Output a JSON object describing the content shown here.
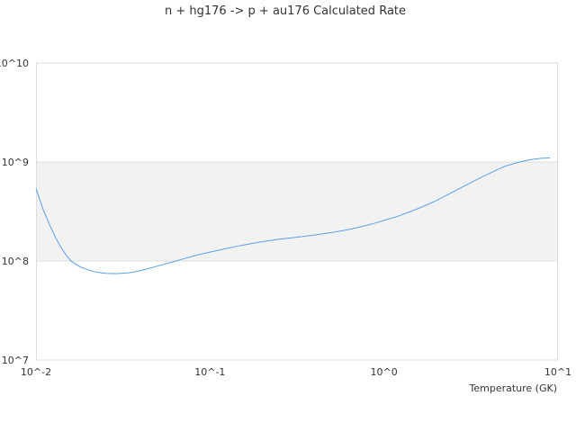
{
  "chart_data": {
    "type": "line",
    "title": "n + hg176 -> p + au176 Calculated Rate",
    "xlabel": "Temperature (GK)",
    "ylabel": "",
    "x_scale": "log",
    "y_scale": "log",
    "xlim": [
      0.01,
      10
    ],
    "ylim": [
      10000000,
      10000000000
    ],
    "x_ticks": [
      {
        "value": 0.01,
        "label": "10^-2"
      },
      {
        "value": 0.1,
        "label": "10^-1"
      },
      {
        "value": 1,
        "label": "10^0"
      },
      {
        "value": 10,
        "label": "10^1"
      }
    ],
    "y_ticks": [
      {
        "value": 10000000,
        "label": "10^7"
      },
      {
        "value": 100000000,
        "label": "10^8"
      },
      {
        "value": 1000000000,
        "label": "10^9"
      },
      {
        "value": 10000000000,
        "label": "10^10"
      }
    ],
    "band": {
      "from": 100000000,
      "to": 1000000000,
      "color": "#f2f2f2"
    },
    "grid": true,
    "line_color": "#5aa0e6",
    "series": [
      {
        "x": [
          0.01,
          0.011,
          0.012,
          0.013,
          0.014,
          0.015,
          0.016,
          0.018,
          0.02,
          0.022,
          0.025,
          0.028,
          0.03,
          0.033,
          0.036,
          0.04,
          0.045,
          0.05,
          0.06,
          0.07,
          0.08,
          0.09,
          0.1,
          0.12,
          0.14,
          0.16,
          0.18,
          0.2,
          0.25,
          0.3,
          0.35,
          0.4,
          0.45,
          0.5,
          0.6,
          0.7,
          0.8,
          0.9,
          1.0,
          1.2,
          1.4,
          1.6,
          1.8,
          2.0,
          2.5,
          3.0,
          3.5,
          4.0,
          4.5,
          5.0,
          6.0,
          7.0,
          8.0,
          9.0
        ],
        "y": [
          540000000,
          330000000,
          230000000,
          170000000,
          135000000,
          113000000,
          99000000,
          87000000,
          81000000,
          77500000,
          75000000,
          74500000,
          74700000,
          75500000,
          77000000,
          80000000,
          84500000,
          89000000,
          97000000,
          105000000,
          112000000,
          118000000,
          123000000,
          132000000,
          140000000,
          146000000,
          152000000,
          157000000,
          166000000,
          172000000,
          178000000,
          183000000,
          189000000,
          194000000,
          205000000,
          217000000,
          230000000,
          243000000,
          257000000,
          283000000,
          313000000,
          343000000,
          375000000,
          408000000,
          500000000,
          590000000,
          680000000,
          760000000,
          840000000,
          910000000,
          1000000000,
          1060000000,
          1090000000,
          1100000000
        ]
      }
    ]
  }
}
